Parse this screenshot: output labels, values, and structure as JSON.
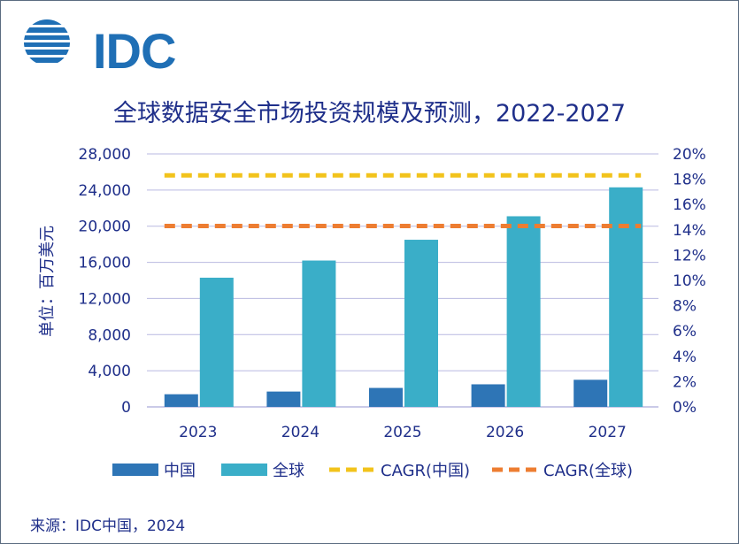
{
  "logo": {
    "text": "IDC"
  },
  "source": "来源：IDC中国，2024",
  "chart_data": {
    "type": "bar",
    "title": "全球数据安全市场投资规模及预测，2022-2027",
    "ylabel": "单位：百万美元",
    "categories": [
      "2023",
      "2024",
      "2025",
      "2026",
      "2027"
    ],
    "series": [
      {
        "name": "中国",
        "values": [
          1400,
          1700,
          2100,
          2500,
          3000
        ],
        "color": "#2e75b6",
        "kind": "bar"
      },
      {
        "name": "全球",
        "values": [
          14300,
          16200,
          18500,
          21100,
          24300
        ],
        "color": "#3aaec8",
        "kind": "bar"
      }
    ],
    "cagr_lines": [
      {
        "name": "CAGR(中国)",
        "value": 18.3,
        "color": "#f2c31b"
      },
      {
        "name": "CAGR(全球)",
        "value": 14.3,
        "color": "#ed7d31"
      }
    ],
    "ylim": [
      0,
      28000
    ],
    "yticks": [
      "0",
      "4,000",
      "8,000",
      "12,000",
      "16,000",
      "20,000",
      "24,000",
      "28,000"
    ],
    "y2lim": [
      0,
      20
    ],
    "y2ticks": [
      "0%",
      "2%",
      "4%",
      "6%",
      "8%",
      "10%",
      "12%",
      "14%",
      "16%",
      "18%",
      "20%"
    ],
    "grid": true,
    "legend_position": "bottom"
  }
}
